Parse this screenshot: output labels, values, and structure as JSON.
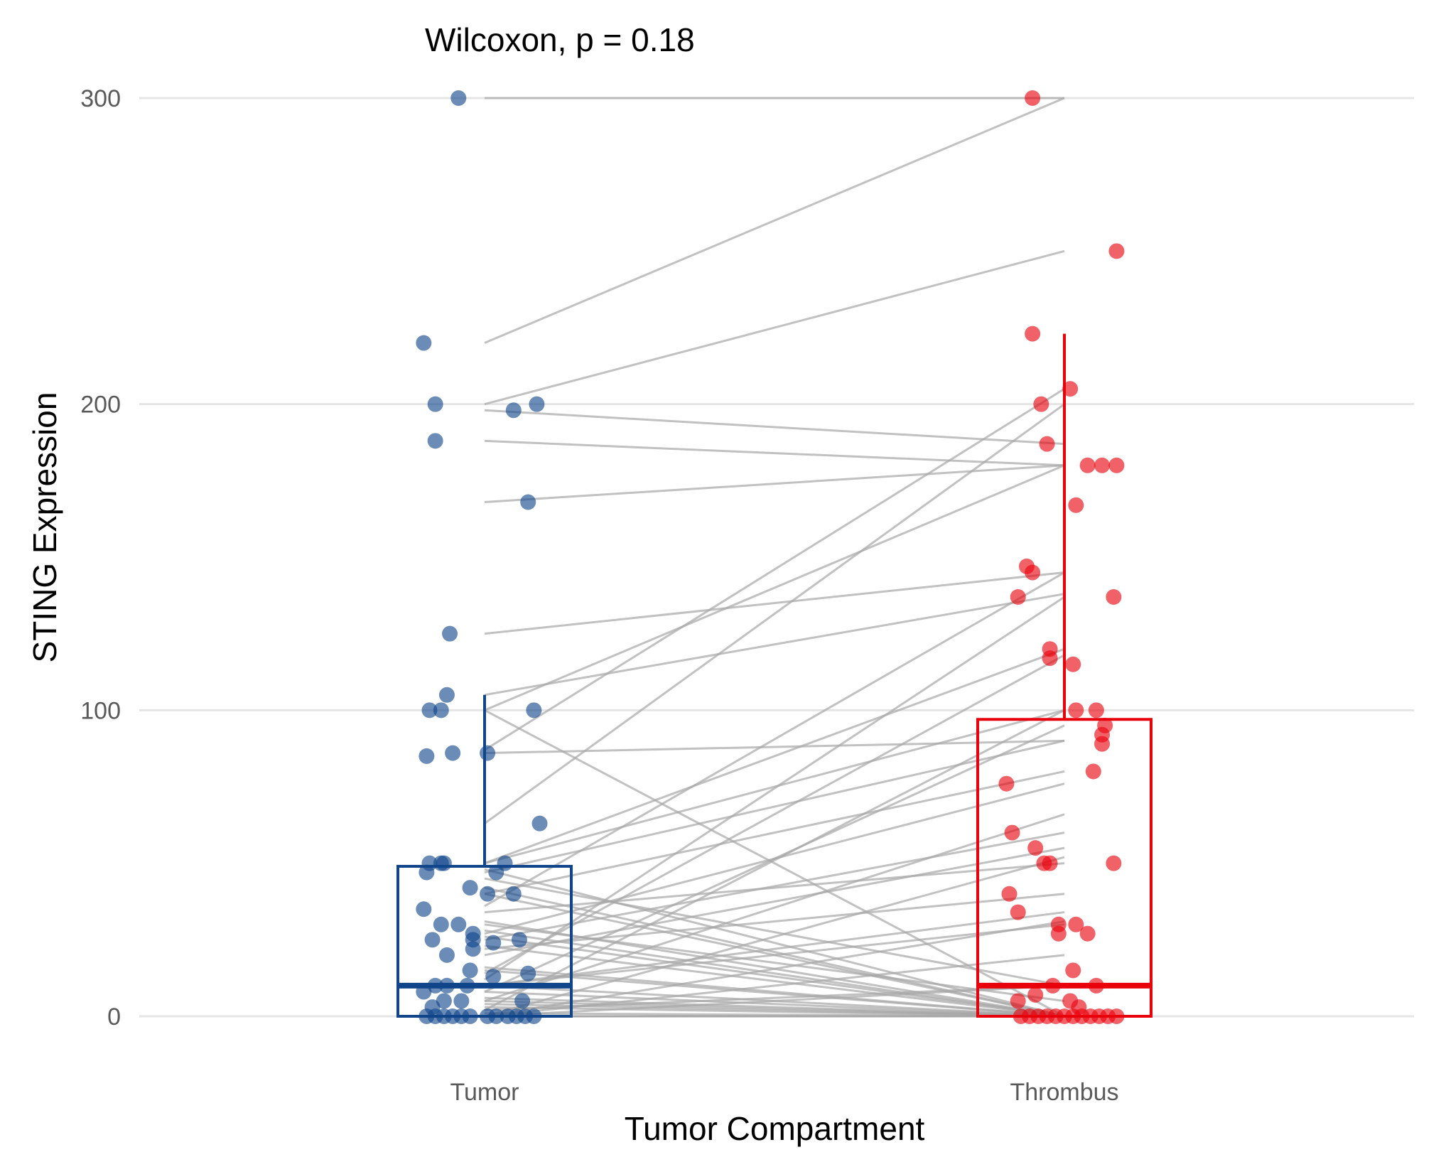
{
  "chart_data": {
    "type": "box-jitter-paired",
    "title": "",
    "annotation": "Wilcoxon, p = 0.18",
    "xlabel": "Tumor Compartment",
    "ylabel": "STING Expression",
    "categories": [
      "Tumor",
      "Thrombus"
    ],
    "yticks": [
      0,
      100,
      200,
      300
    ],
    "ylim": [
      -12,
      312
    ],
    "grid": true,
    "legend": "none",
    "colors": {
      "Tumor": "#10458a",
      "Thrombus": "#e8000b",
      "pair_line": "#a6a6a6",
      "grid": "#e5e5e5"
    },
    "boxes": [
      {
        "group": "Tumor",
        "q1": 0,
        "median": 10,
        "q3": 49,
        "whisker_low": 0,
        "whisker_high": 105
      },
      {
        "group": "Thrombus",
        "q1": 0,
        "median": 10,
        "q3": 97,
        "whisker_low": 0,
        "whisker_high": 223
      }
    ],
    "pairs": [
      [
        300,
        300
      ],
      [
        220,
        300
      ],
      [
        200,
        250
      ],
      [
        198,
        187
      ],
      [
        188,
        180
      ],
      [
        168,
        180
      ],
      [
        125,
        145
      ],
      [
        105,
        138
      ],
      [
        100,
        0
      ],
      [
        100,
        180
      ],
      [
        87,
        205
      ],
      [
        86,
        90
      ],
      [
        63,
        200
      ],
      [
        50,
        100
      ],
      [
        50,
        120
      ],
      [
        48,
        0
      ],
      [
        47,
        90
      ],
      [
        45,
        10
      ],
      [
        42,
        0
      ],
      [
        40,
        0
      ],
      [
        40,
        80
      ],
      [
        36,
        145
      ],
      [
        34,
        50
      ],
      [
        31,
        0
      ],
      [
        30,
        5
      ],
      [
        28,
        0
      ],
      [
        27,
        76
      ],
      [
        26,
        0
      ],
      [
        25,
        60
      ],
      [
        23,
        0
      ],
      [
        22,
        40
      ],
      [
        20,
        55
      ],
      [
        16,
        0
      ],
      [
        15,
        0
      ],
      [
        14,
        118
      ],
      [
        12,
        137
      ],
      [
        10,
        0
      ],
      [
        10,
        30
      ],
      [
        10,
        34
      ],
      [
        8,
        95
      ],
      [
        8,
        0
      ],
      [
        6,
        0
      ],
      [
        5,
        0
      ],
      [
        5,
        66
      ],
      [
        4,
        0
      ],
      [
        3,
        0
      ],
      [
        2,
        100
      ],
      [
        2,
        10
      ],
      [
        1,
        0
      ],
      [
        0,
        0
      ],
      [
        0,
        0
      ],
      [
        0,
        0
      ],
      [
        0,
        10
      ],
      [
        0,
        0
      ],
      [
        0,
        0
      ],
      [
        0,
        20
      ],
      [
        0,
        52
      ],
      [
        0,
        31
      ],
      [
        0,
        0
      ],
      [
        0,
        0
      ]
    ],
    "points": {
      "Tumor": [
        [
          -0.045,
          300
        ],
        [
          -0.105,
          220
        ],
        [
          -0.085,
          188
        ],
        [
          0.05,
          198
        ],
        [
          0.09,
          200
        ],
        [
          -0.085,
          200
        ],
        [
          0.075,
          168
        ],
        [
          -0.06,
          125
        ],
        [
          -0.065,
          105
        ],
        [
          -0.075,
          100
        ],
        [
          -0.095,
          100
        ],
        [
          0.085,
          100
        ],
        [
          -0.1,
          85
        ],
        [
          -0.055,
          86
        ],
        [
          0.005,
          86
        ],
        [
          0.095,
          63
        ],
        [
          -0.095,
          50
        ],
        [
          -0.075,
          50
        ],
        [
          -0.07,
          50
        ],
        [
          -0.1,
          47
        ],
        [
          0.035,
          50
        ],
        [
          0.02,
          47
        ],
        [
          -0.025,
          42
        ],
        [
          0.005,
          40
        ],
        [
          0.05,
          40
        ],
        [
          -0.105,
          35
        ],
        [
          -0.075,
          30
        ],
        [
          -0.045,
          30
        ],
        [
          -0.02,
          27
        ],
        [
          -0.02,
          25
        ],
        [
          0.015,
          24
        ],
        [
          0.06,
          25
        ],
        [
          -0.09,
          25
        ],
        [
          -0.065,
          20
        ],
        [
          -0.02,
          22
        ],
        [
          -0.025,
          15
        ],
        [
          0.015,
          13
        ],
        [
          0.075,
          14
        ],
        [
          -0.085,
          10
        ],
        [
          -0.065,
          10
        ],
        [
          -0.03,
          10
        ],
        [
          -0.04,
          5
        ],
        [
          -0.07,
          5
        ],
        [
          -0.105,
          8
        ],
        [
          -0.09,
          3
        ],
        [
          0.065,
          5
        ],
        [
          -0.1,
          0
        ],
        [
          -0.085,
          0
        ],
        [
          -0.07,
          0
        ],
        [
          -0.055,
          0
        ],
        [
          -0.04,
          0
        ],
        [
          -0.025,
          0
        ],
        [
          0.005,
          0
        ],
        [
          0.02,
          0
        ],
        [
          0.04,
          0
        ],
        [
          0.055,
          0
        ],
        [
          0.07,
          0
        ],
        [
          0.085,
          0
        ]
      ],
      "Thrombus": [
        [
          -0.055,
          300
        ],
        [
          0.09,
          250
        ],
        [
          -0.055,
          223
        ],
        [
          0.01,
          205
        ],
        [
          -0.04,
          200
        ],
        [
          -0.03,
          187
        ],
        [
          0.04,
          180
        ],
        [
          0.065,
          180
        ],
        [
          0.09,
          180
        ],
        [
          0.02,
          167
        ],
        [
          -0.065,
          147
        ],
        [
          -0.055,
          145
        ],
        [
          -0.08,
          137
        ],
        [
          0.085,
          137
        ],
        [
          -0.025,
          120
        ],
        [
          -0.025,
          117
        ],
        [
          0.015,
          115
        ],
        [
          0.02,
          100
        ],
        [
          0.055,
          100
        ],
        [
          0.07,
          95
        ],
        [
          0.065,
          92
        ],
        [
          0.065,
          89
        ],
        [
          0.05,
          80
        ],
        [
          -0.1,
          76
        ],
        [
          -0.09,
          60
        ],
        [
          -0.05,
          55
        ],
        [
          -0.035,
          50
        ],
        [
          -0.025,
          50
        ],
        [
          0.085,
          50
        ],
        [
          -0.095,
          40
        ],
        [
          -0.08,
          34
        ],
        [
          -0.01,
          30
        ],
        [
          0.02,
          30
        ],
        [
          0.04,
          27
        ],
        [
          -0.01,
          27
        ],
        [
          0.015,
          15
        ],
        [
          0.055,
          10
        ],
        [
          -0.05,
          7
        ],
        [
          -0.02,
          10
        ],
        [
          -0.08,
          5
        ],
        [
          0.01,
          5
        ],
        [
          -0.06,
          0
        ],
        [
          -0.045,
          0
        ],
        [
          -0.03,
          0
        ],
        [
          -0.015,
          0
        ],
        [
          0.0,
          0
        ],
        [
          0.015,
          0
        ],
        [
          0.03,
          0
        ],
        [
          0.045,
          0
        ],
        [
          0.06,
          0
        ],
        [
          0.075,
          0
        ],
        [
          0.09,
          0
        ],
        [
          -0.075,
          0
        ],
        [
          0.025,
          3
        ]
      ]
    }
  }
}
